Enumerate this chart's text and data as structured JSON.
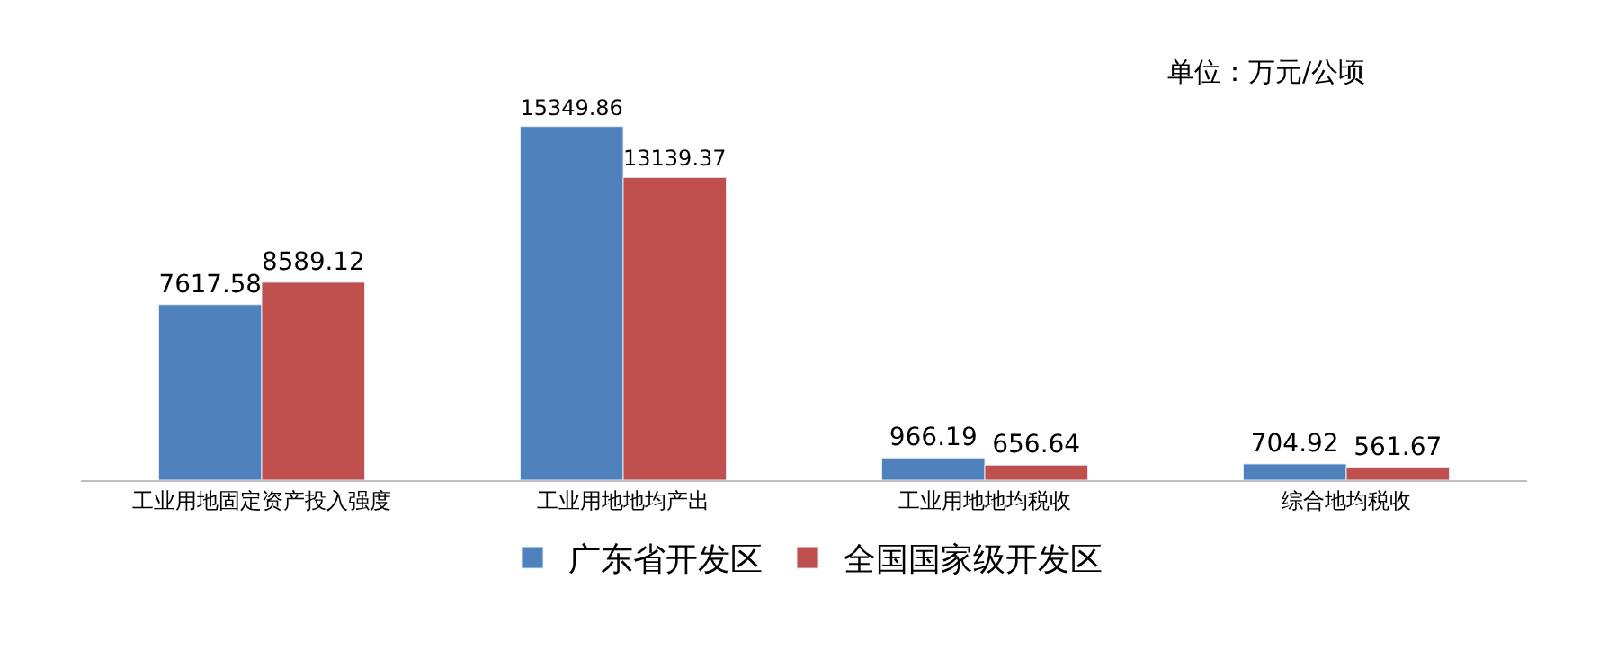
{
  "chart_data": {
    "type": "bar",
    "categories": [
      "工业用地固定资产投入强度",
      "工业用地地均产出",
      "工业用地地均税收",
      "综合地均税收"
    ],
    "series": [
      {
        "name": "广东省开发区",
        "color": "#4f81bd",
        "values": [
          7617.58,
          15349.86,
          966.19,
          704.92
        ]
      },
      {
        "name": "全国国家级开发区",
        "color": "#c0504d",
        "values": [
          8589.12,
          13139.37,
          656.64,
          561.67
        ]
      }
    ],
    "tick_labels": "x",
    "data_labels": true,
    "legend": "bottom",
    "annotations": [
      "单位：万元/公顷"
    ]
  }
}
